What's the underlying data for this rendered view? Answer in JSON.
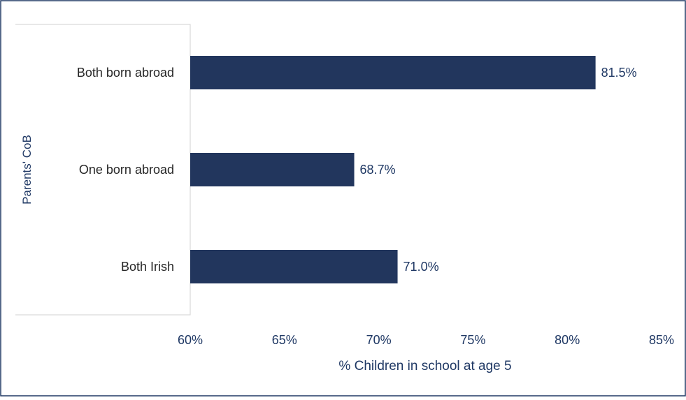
{
  "chart_data": {
    "type": "bar",
    "orientation": "horizontal",
    "categories": [
      "Both born abroad",
      "One born abroad",
      "Both Irish"
    ],
    "values": [
      81.5,
      68.7,
      71.0
    ],
    "value_labels": [
      "81.5%",
      "68.7%",
      "71.0%"
    ],
    "xlabel": "% Children in school at age 5",
    "ylabel": "Parents' CoB",
    "xlim": [
      60,
      85
    ],
    "x_ticks": [
      60,
      65,
      70,
      75,
      80,
      85
    ],
    "x_tick_labels": [
      "60%",
      "65%",
      "70%",
      "75%",
      "80%",
      "85%"
    ],
    "grid": false,
    "legend": "none",
    "colors": {
      "bar": "#22365d",
      "frame": "#1f3864",
      "axis_line": "#d9d9d9",
      "text": "#1f3864",
      "category_text": "#262626"
    }
  }
}
